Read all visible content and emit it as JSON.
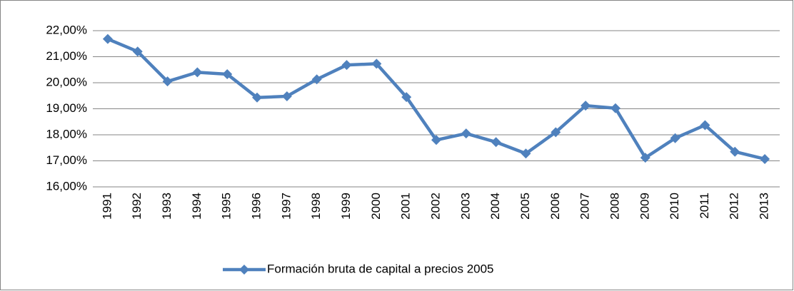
{
  "chart_data": {
    "type": "line",
    "categories": [
      "1991",
      "1992",
      "1993",
      "1994",
      "1995",
      "1996",
      "1997",
      "1998",
      "1999",
      "2000",
      "2001",
      "2002",
      "2003",
      "2004",
      "2005",
      "2006",
      "2007",
      "2008",
      "2009",
      "2010",
      "2011",
      "2012",
      "2013"
    ],
    "series": [
      {
        "name": "Formación bruta de capital a precios 2005",
        "color": "#4f81bd",
        "values": [
          21.68,
          21.2,
          20.05,
          20.4,
          20.33,
          19.43,
          19.48,
          20.13,
          20.68,
          20.73,
          19.45,
          17.8,
          18.05,
          17.72,
          17.28,
          18.1,
          19.12,
          19.02,
          17.12,
          17.87,
          18.37,
          17.35,
          17.07
        ]
      }
    ],
    "ylim": [
      16,
      22
    ],
    "yticks": [
      {
        "value": 16,
        "label": "16,00%"
      },
      {
        "value": 17,
        "label": "17,00%"
      },
      {
        "value": 18,
        "label": "18,00%"
      },
      {
        "value": 19,
        "label": "19,00%"
      },
      {
        "value": 20,
        "label": "20,00%"
      },
      {
        "value": 21,
        "label": "21,00%"
      },
      {
        "value": 22,
        "label": "22,00%"
      }
    ],
    "grid": true,
    "legend": "bottom"
  }
}
